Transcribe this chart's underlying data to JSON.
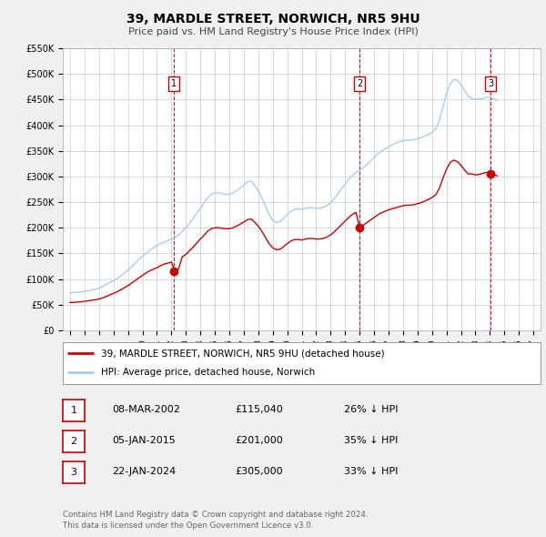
{
  "title": "39, MARDLE STREET, NORWICH, NR5 9HU",
  "subtitle": "Price paid vs. HM Land Registry's House Price Index (HPI)",
  "ylim": [
    0,
    550000
  ],
  "yticks": [
    0,
    50000,
    100000,
    150000,
    200000,
    250000,
    300000,
    350000,
    400000,
    450000,
    500000,
    550000
  ],
  "ytick_labels": [
    "£0",
    "£50K",
    "£100K",
    "£150K",
    "£200K",
    "£250K",
    "£300K",
    "£350K",
    "£400K",
    "£450K",
    "£500K",
    "£550K"
  ],
  "xlim_start": 1994.5,
  "xlim_end": 2027.5,
  "xticks": [
    1995,
    1996,
    1997,
    1998,
    1999,
    2000,
    2001,
    2002,
    2003,
    2004,
    2005,
    2006,
    2007,
    2008,
    2009,
    2010,
    2011,
    2012,
    2013,
    2014,
    2015,
    2016,
    2017,
    2018,
    2019,
    2020,
    2021,
    2022,
    2023,
    2024,
    2025,
    2026,
    2027
  ],
  "background_color": "#f0f0f0",
  "plot_bg_color": "#ffffff",
  "grid_color": "#cccccc",
  "red_line_color": "#cc0000",
  "blue_line_color": "#aaccee",
  "sale_marker_color": "#cc0000",
  "dashed_line_color": "#cc0000",
  "legend_label_red": "39, MARDLE STREET, NORWICH, NR5 9HU (detached house)",
  "legend_label_blue": "HPI: Average price, detached house, Norwich",
  "sales": [
    {
      "num": 1,
      "year": 2002.19,
      "price": 115040,
      "label": "1"
    },
    {
      "num": 2,
      "year": 2015.02,
      "price": 201000,
      "label": "2"
    },
    {
      "num": 3,
      "year": 2024.06,
      "price": 305000,
      "label": "3"
    }
  ],
  "table_rows": [
    {
      "num": "1",
      "date": "08-MAR-2002",
      "price": "£115,040",
      "hpi": "26% ↓ HPI"
    },
    {
      "num": "2",
      "date": "05-JAN-2015",
      "price": "£201,000",
      "hpi": "35% ↓ HPI"
    },
    {
      "num": "3",
      "date": "22-JAN-2024",
      "price": "£305,000",
      "hpi": "33% ↓ HPI"
    }
  ],
  "footer1": "Contains HM Land Registry data © Crown copyright and database right 2024.",
  "footer2": "This data is licensed under the Open Government Licence v3.0.",
  "hpi_data_x": [
    1995.0,
    1995.25,
    1995.5,
    1995.75,
    1996.0,
    1996.25,
    1996.5,
    1996.75,
    1997.0,
    1997.25,
    1997.5,
    1997.75,
    1998.0,
    1998.25,
    1998.5,
    1998.75,
    1999.0,
    1999.25,
    1999.5,
    1999.75,
    2000.0,
    2000.25,
    2000.5,
    2000.75,
    2001.0,
    2001.25,
    2001.5,
    2001.75,
    2002.0,
    2002.25,
    2002.5,
    2002.75,
    2003.0,
    2003.25,
    2003.5,
    2003.75,
    2004.0,
    2004.25,
    2004.5,
    2004.75,
    2005.0,
    2005.25,
    2005.5,
    2005.75,
    2006.0,
    2006.25,
    2006.5,
    2006.75,
    2007.0,
    2007.25,
    2007.5,
    2007.75,
    2008.0,
    2008.25,
    2008.5,
    2008.75,
    2009.0,
    2009.25,
    2009.5,
    2009.75,
    2010.0,
    2010.25,
    2010.5,
    2010.75,
    2011.0,
    2011.25,
    2011.5,
    2011.75,
    2012.0,
    2012.25,
    2012.5,
    2012.75,
    2013.0,
    2013.25,
    2013.5,
    2013.75,
    2014.0,
    2014.25,
    2014.5,
    2014.75,
    2015.0,
    2015.25,
    2015.5,
    2015.75,
    2016.0,
    2016.25,
    2016.5,
    2016.75,
    2017.0,
    2017.25,
    2017.5,
    2017.75,
    2018.0,
    2018.25,
    2018.5,
    2018.75,
    2019.0,
    2019.25,
    2019.5,
    2019.75,
    2020.0,
    2020.25,
    2020.5,
    2020.75,
    2021.0,
    2021.25,
    2021.5,
    2021.75,
    2022.0,
    2022.25,
    2022.5,
    2022.75,
    2023.0,
    2023.25,
    2023.5,
    2023.75,
    2024.0,
    2024.25,
    2024.5
  ],
  "hpi_data_y": [
    73000,
    73500,
    74000,
    74500,
    76000,
    77000,
    78500,
    80000,
    82000,
    85000,
    89000,
    93000,
    97000,
    101000,
    106000,
    111000,
    117000,
    124000,
    131000,
    138000,
    144000,
    150000,
    156000,
    161000,
    165000,
    169000,
    172000,
    175000,
    178000,
    181000,
    186000,
    193000,
    200000,
    208000,
    218000,
    228000,
    238000,
    248000,
    258000,
    265000,
    268000,
    268000,
    267000,
    265000,
    265000,
    268000,
    272000,
    277000,
    283000,
    290000,
    291000,
    283000,
    272000,
    258000,
    242000,
    226000,
    215000,
    210000,
    212000,
    218000,
    226000,
    232000,
    236000,
    237000,
    236000,
    238000,
    239000,
    239000,
    238000,
    238000,
    240000,
    244000,
    249000,
    257000,
    266000,
    276000,
    285000,
    294000,
    302000,
    308000,
    312000,
    317000,
    323000,
    330000,
    337000,
    344000,
    349000,
    354000,
    358000,
    362000,
    365000,
    368000,
    370000,
    371000,
    371000,
    372000,
    374000,
    376000,
    379000,
    382000,
    386000,
    392000,
    408000,
    435000,
    462000,
    480000,
    489000,
    488000,
    479000,
    468000,
    457000,
    452000,
    450000,
    451000,
    452000,
    455000,
    455000,
    452000,
    448000
  ],
  "red_data_x": [
    1995.0,
    1995.25,
    1995.5,
    1995.75,
    1996.0,
    1996.25,
    1996.5,
    1996.75,
    1997.0,
    1997.25,
    1997.5,
    1997.75,
    1998.0,
    1998.25,
    1998.5,
    1998.75,
    1999.0,
    1999.25,
    1999.5,
    1999.75,
    2000.0,
    2000.25,
    2000.5,
    2000.75,
    2001.0,
    2001.25,
    2001.5,
    2001.75,
    2002.0,
    2002.25,
    2002.5,
    2002.75,
    2003.0,
    2003.25,
    2003.5,
    2003.75,
    2004.0,
    2004.25,
    2004.5,
    2004.75,
    2005.0,
    2005.25,
    2005.5,
    2005.75,
    2006.0,
    2006.25,
    2006.5,
    2006.75,
    2007.0,
    2007.25,
    2007.5,
    2007.75,
    2008.0,
    2008.25,
    2008.5,
    2008.75,
    2009.0,
    2009.25,
    2009.5,
    2009.75,
    2010.0,
    2010.25,
    2010.5,
    2010.75,
    2011.0,
    2011.25,
    2011.5,
    2011.75,
    2012.0,
    2012.25,
    2012.5,
    2012.75,
    2013.0,
    2013.25,
    2013.5,
    2013.75,
    2014.0,
    2014.25,
    2014.5,
    2014.75,
    2015.0,
    2015.25,
    2015.5,
    2015.75,
    2016.0,
    2016.25,
    2016.5,
    2016.75,
    2017.0,
    2017.25,
    2017.5,
    2017.75,
    2018.0,
    2018.25,
    2018.5,
    2018.75,
    2019.0,
    2019.25,
    2019.5,
    2019.75,
    2020.0,
    2020.25,
    2020.5,
    2020.75,
    2021.0,
    2021.25,
    2021.5,
    2021.75,
    2022.0,
    2022.25,
    2022.5,
    2022.75,
    2023.0,
    2023.25,
    2023.5,
    2023.75,
    2024.0,
    2024.25,
    2024.5
  ],
  "red_data_y": [
    54000,
    54500,
    55000,
    55500,
    56500,
    57500,
    58500,
    59500,
    61000,
    63000,
    66000,
    69000,
    72000,
    75000,
    79000,
    83000,
    87000,
    92000,
    97000,
    102000,
    107000,
    112000,
    116000,
    119000,
    122000,
    126000,
    129000,
    131000,
    133000,
    115040,
    120000,
    143000,
    148000,
    155000,
    162000,
    170000,
    178000,
    185000,
    193000,
    198000,
    200000,
    200000,
    199000,
    198000,
    198000,
    200000,
    203000,
    207000,
    211000,
    216000,
    217000,
    211000,
    203000,
    193000,
    181000,
    169000,
    161000,
    157000,
    158000,
    163000,
    169000,
    174000,
    177000,
    177000,
    176000,
    178000,
    179000,
    179000,
    178000,
    178000,
    179000,
    182000,
    186000,
    192000,
    199000,
    206000,
    213000,
    220000,
    226000,
    230000,
    201000,
    205000,
    210000,
    215000,
    220000,
    225000,
    229000,
    232000,
    235000,
    237000,
    239000,
    241000,
    243000,
    244000,
    244000,
    245000,
    247000,
    249000,
    252000,
    255000,
    259000,
    264000,
    276000,
    296000,
    314000,
    327000,
    332000,
    329000,
    322000,
    313000,
    305000,
    305000,
    303000,
    304000,
    306000,
    308000,
    307000,
    305000,
    301000
  ]
}
